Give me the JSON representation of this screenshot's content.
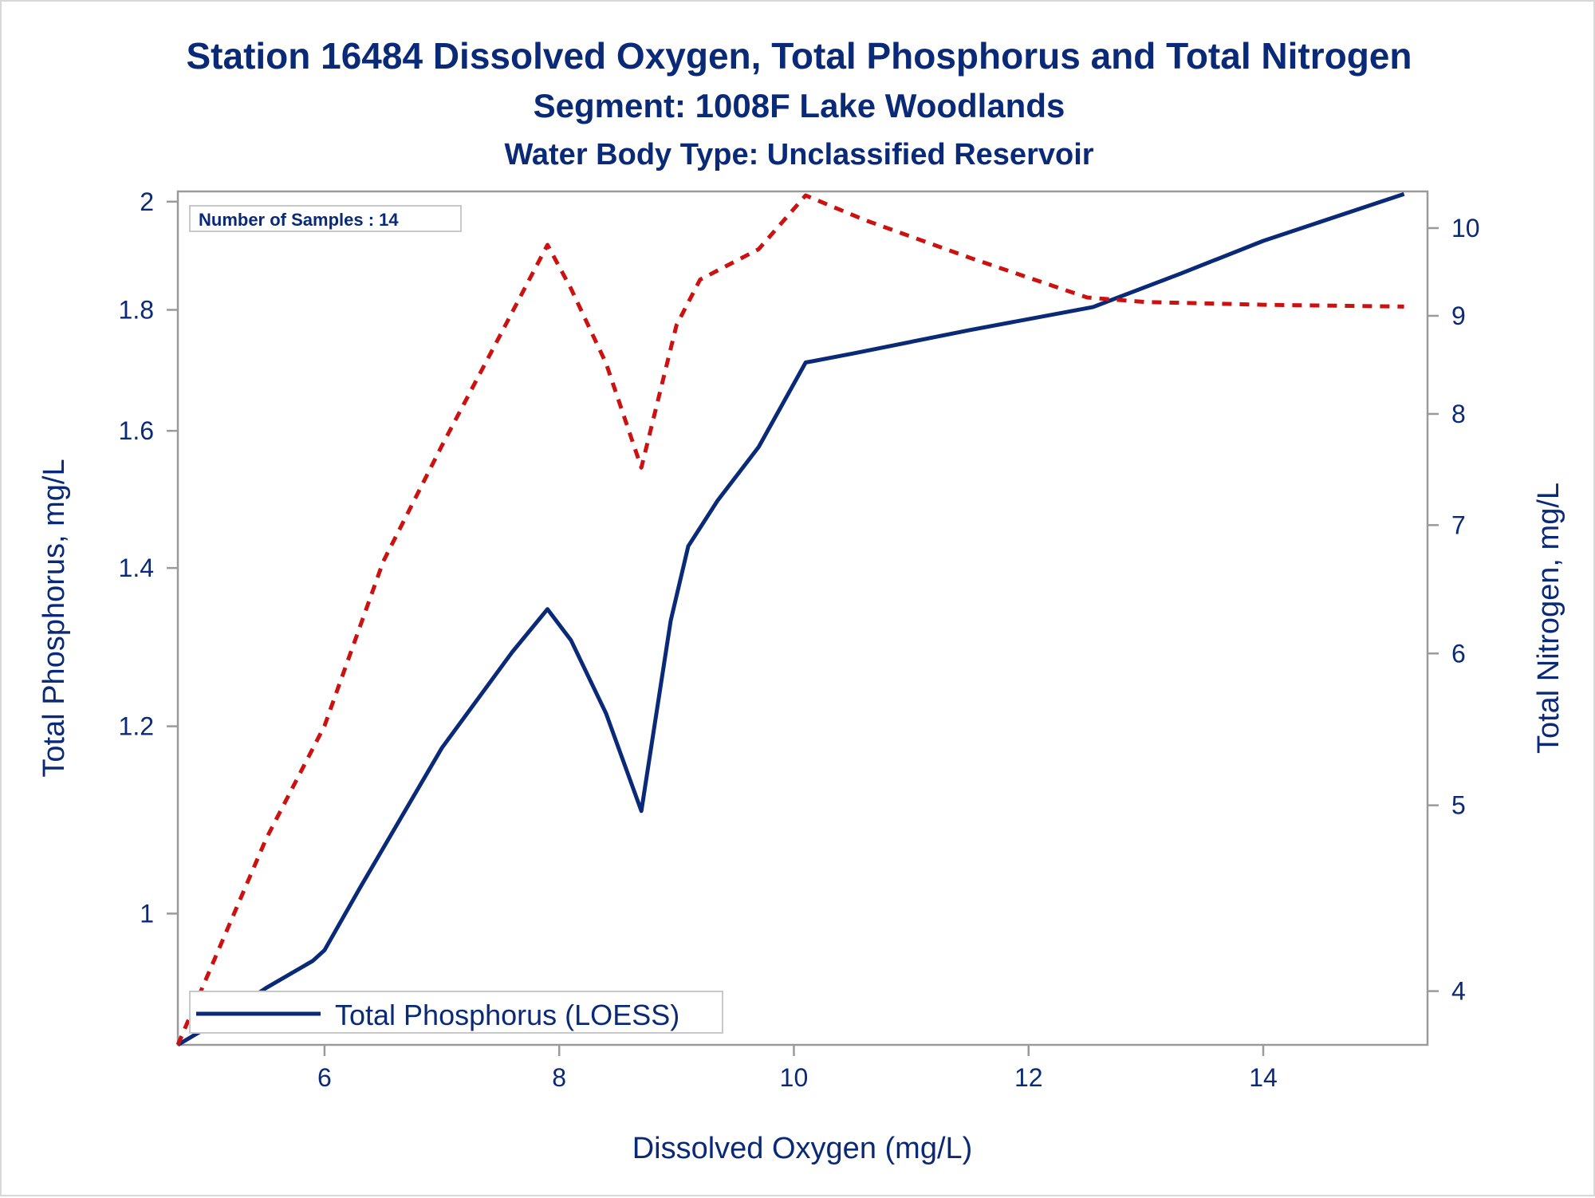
{
  "titles": {
    "line1": "Station 16484  Dissolved Oxygen, Total Phosphorus and Total Nitrogen",
    "line2": "Segment: 1008F  Lake Woodlands",
    "line3": "Water Body Type: Unclassified Reservoir"
  },
  "inset": {
    "samples_text": "Number of Samples : 14"
  },
  "legend": {
    "label": "Total Phosphorus (LOESS)"
  },
  "colors": {
    "text": "#0a2a78",
    "phosphorus": "#0a2a78",
    "nitrogen": "#cc1111",
    "frame": "#9a9a9a"
  },
  "chart_data": {
    "type": "line",
    "xlabel": "Dissolved Oxygen (mg/L)",
    "ylabel": "Total Phosphorus, mg/L",
    "y2label": "Total Nitrogen, mg/L",
    "xlim": [
      4.75,
      15.4
    ],
    "ylim": [
      0.88,
      2.02
    ],
    "y2lim": [
      3.75,
      10.45
    ],
    "xticks": [
      "6",
      "8",
      "10",
      "12",
      "14"
    ],
    "yticks": [
      "1",
      "1.2",
      "1.4",
      "1.6",
      "1.8",
      "2"
    ],
    "y2ticks": [
      "4",
      "5",
      "6",
      "7",
      "8",
      "9",
      "10"
    ],
    "y_scale": "log",
    "y2_scale": "log",
    "grid": false,
    "legend_position": "bottom-left",
    "series": [
      {
        "name": "Total Phosphorus (LOESS)",
        "axis": "left",
        "style": "solid",
        "x": [
          4.75,
          5.0,
          5.5,
          5.9,
          6.0,
          6.3,
          7.0,
          7.6,
          7.9,
          8.1,
          8.4,
          8.7,
          8.95,
          9.1,
          9.35,
          9.7,
          10.1,
          10.5,
          11.5,
          12.55,
          13.3,
          14.0,
          15.2
        ],
        "values": [
          0.88,
          0.895,
          0.93,
          0.955,
          0.965,
          1.025,
          1.175,
          1.29,
          1.345,
          1.305,
          1.215,
          1.105,
          1.33,
          1.43,
          1.495,
          1.575,
          1.71,
          1.725,
          1.765,
          1.805,
          1.865,
          1.925,
          2.015
        ]
      },
      {
        "name": "Total Nitrogen",
        "axis": "right",
        "style": "dashed",
        "x": [
          4.75,
          5.5,
          6.0,
          6.5,
          7.0,
          7.5,
          7.9,
          8.1,
          8.4,
          8.7,
          9.0,
          9.2,
          9.7,
          10.1,
          10.6,
          11.5,
          12.5,
          13.0,
          14.0,
          15.2
        ],
        "values": [
          3.75,
          4.8,
          5.5,
          6.7,
          7.7,
          8.8,
          9.8,
          9.3,
          8.5,
          7.5,
          8.9,
          9.4,
          9.75,
          10.4,
          10.1,
          9.65,
          9.2,
          9.15,
          9.12,
          9.1
        ]
      }
    ]
  }
}
